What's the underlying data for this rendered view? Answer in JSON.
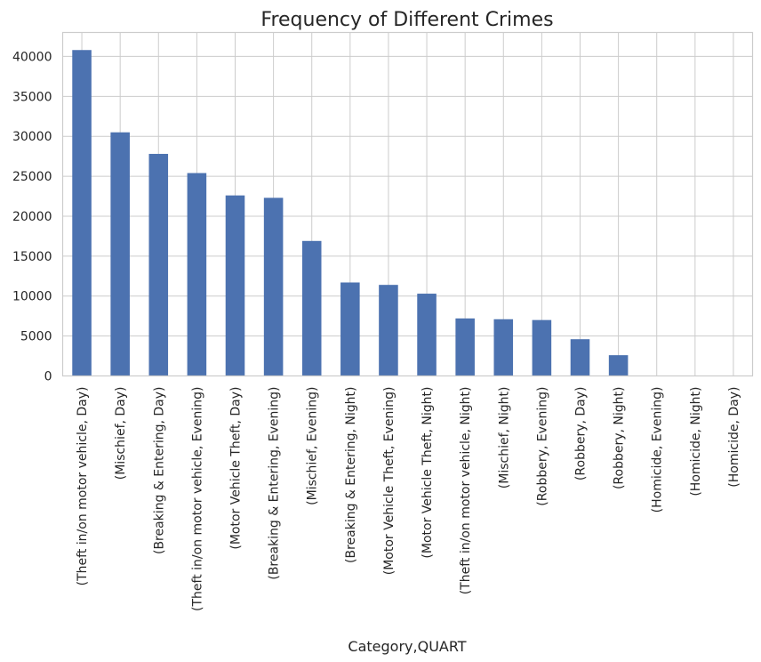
{
  "chart_data": {
    "type": "bar",
    "title": "Frequency of Different Crimes",
    "xlabel": "Category,QUART",
    "ylabel": "",
    "ylim": [
      0,
      43000
    ],
    "yticks": [
      0,
      5000,
      10000,
      15000,
      20000,
      25000,
      30000,
      35000,
      40000
    ],
    "grid": true,
    "legend": "none",
    "bar_color": "#4c72b0",
    "categories": [
      "(Theft in/on motor vehicle, Day)",
      "(Mischief, Day)",
      "(Breaking & Entering, Day)",
      "(Theft in/on motor vehicle, Evening)",
      "(Motor Vehicle Theft, Day)",
      "(Breaking & Entering, Evening)",
      "(Mischief, Evening)",
      "(Breaking & Entering, Night)",
      "(Motor Vehicle Theft, Evening)",
      "(Motor Vehicle Theft, Night)",
      "(Theft in/on motor vehicle, Night)",
      "(Mischief, Night)",
      "(Robbery, Evening)",
      "(Robbery, Day)",
      "(Robbery, Night)",
      "(Homicide, Evening)",
      "(Homicide, Night)",
      "(Homicide, Day)"
    ],
    "values": [
      40800,
      30500,
      27800,
      25400,
      22600,
      22300,
      16900,
      11700,
      11400,
      10300,
      7200,
      7100,
      7000,
      4600,
      2600,
      30,
      25,
      20
    ]
  }
}
